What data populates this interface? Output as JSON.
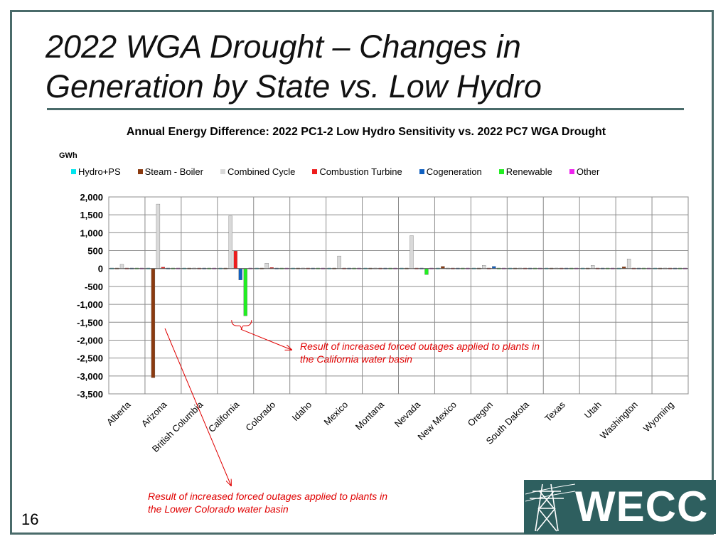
{
  "slide": {
    "title_line1": "2022 WGA Drought – Changes in",
    "title_line2": "Generation by State vs. Low Hydro",
    "page_number": "16",
    "logo_text": "WECC"
  },
  "annotations": {
    "california": "Result of increased forced outages applied to plants in the California water basin",
    "arizona": "Result of increased forced outages applied to plants in the Lower Colorado water basin"
  },
  "chart_data": {
    "type": "bar",
    "title": "Annual Energy Difference: 2022 PC1-2 Low Hydro Sensitivity vs. 2022 PC7 WGA Drought",
    "ylabel": "GWh",
    "ylim": [
      -3500,
      2000
    ],
    "yticks": [
      "2,000",
      "1,500",
      "1,000",
      "500",
      "0",
      "-500",
      "-1,000",
      "-1,500",
      "-2,000",
      "-2,500",
      "-3,000",
      "-3,500"
    ],
    "ytick_values": [
      2000,
      1500,
      1000,
      500,
      0,
      -500,
      -1000,
      -1500,
      -2000,
      -2500,
      -3000,
      -3500
    ],
    "grid": true,
    "legend_position": "top",
    "categories": [
      "Alberta",
      "Arizona",
      "British Columbia",
      "California",
      "Colorado",
      "Idaho",
      "Mexico",
      "Montana",
      "Nevada",
      "New Mexico",
      "Oregon",
      "South Dakota",
      "Texas",
      "Utah",
      "Washington",
      "Wyoming"
    ],
    "series": [
      {
        "name": "Hydro+PS",
        "color": "#00e5ee",
        "values": [
          0,
          0,
          0,
          0,
          0,
          0,
          0,
          0,
          0,
          0,
          0,
          0,
          0,
          0,
          0,
          0
        ]
      },
      {
        "name": "Steam - Boiler",
        "color": "#8b3a0f",
        "values": [
          0,
          -3050,
          0,
          20,
          0,
          0,
          0,
          10,
          0,
          60,
          0,
          0,
          0,
          20,
          50,
          10
        ]
      },
      {
        "name": "Combined Cycle",
        "color": "#d9d9d9",
        "values": [
          120,
          1800,
          0,
          1470,
          150,
          0,
          350,
          0,
          920,
          0,
          90,
          0,
          0,
          90,
          270,
          0
        ]
      },
      {
        "name": "Combustion Turbine",
        "color": "#ee1c1c",
        "values": [
          10,
          40,
          0,
          490,
          30,
          10,
          10,
          10,
          20,
          20,
          10,
          0,
          10,
          10,
          10,
          0
        ]
      },
      {
        "name": "Cogeneration",
        "color": "#1060c0",
        "values": [
          0,
          0,
          0,
          -320,
          0,
          0,
          0,
          0,
          0,
          0,
          60,
          0,
          0,
          0,
          0,
          0
        ]
      },
      {
        "name": "Renewable",
        "color": "#22ee22",
        "values": [
          10,
          10,
          10,
          -1320,
          10,
          10,
          10,
          10,
          -170,
          10,
          10,
          10,
          10,
          10,
          10,
          10
        ]
      },
      {
        "name": "Other",
        "color": "#ee22ee",
        "values": [
          10,
          10,
          10,
          10,
          10,
          10,
          10,
          10,
          10,
          10,
          10,
          10,
          10,
          10,
          10,
          10
        ]
      }
    ]
  }
}
